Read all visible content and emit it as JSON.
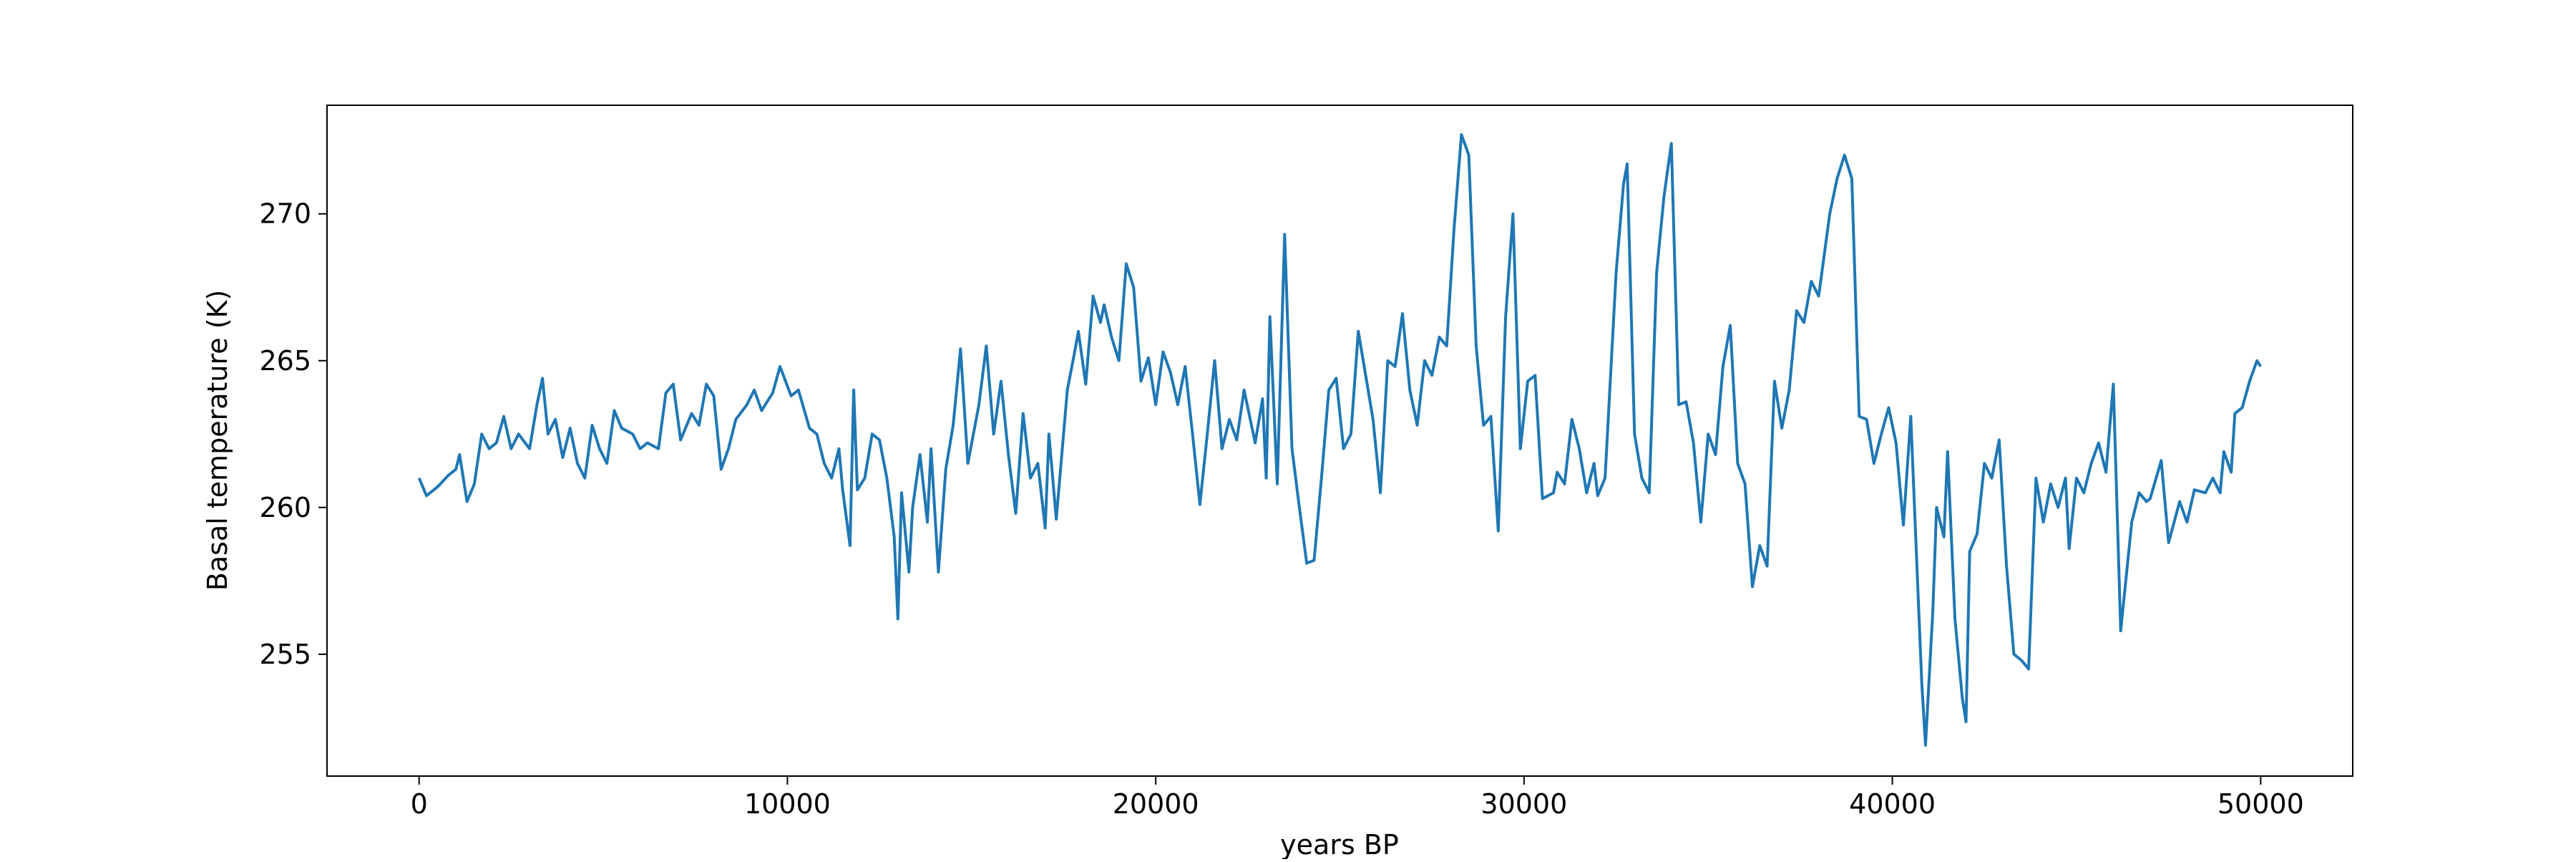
{
  "chart_data": {
    "type": "line",
    "x_label": "years BP",
    "y_label": "Basal temperature (K)",
    "color": "#1f77b4",
    "xlim": [
      -2500,
      52500
    ],
    "ylim": [
      250.85,
      273.7
    ],
    "xticks": [
      0,
      10000,
      20000,
      30000,
      40000,
      50000
    ],
    "yticks": [
      255,
      260,
      265,
      270
    ],
    "x": [
      0,
      200,
      500,
      800,
      1000,
      1100,
      1300,
      1500,
      1700,
      1900,
      2100,
      2300,
      2500,
      2700,
      3000,
      3200,
      3350,
      3500,
      3700,
      3900,
      4100,
      4300,
      4500,
      4700,
      4900,
      5100,
      5300,
      5500,
      5800,
      6000,
      6200,
      6500,
      6700,
      6900,
      7100,
      7400,
      7600,
      7800,
      8000,
      8200,
      8400,
      8600,
      8900,
      9100,
      9300,
      9600,
      9800,
      10100,
      10300,
      10600,
      10800,
      11000,
      11200,
      11400,
      11500,
      11700,
      11800,
      11900,
      12100,
      12300,
      12500,
      12700,
      12900,
      13000,
      13100,
      13300,
      13400,
      13600,
      13800,
      13900,
      14100,
      14300,
      14500,
      14700,
      14900,
      15200,
      15400,
      15600,
      15800,
      16000,
      16200,
      16400,
      16600,
      16800,
      17000,
      17100,
      17300,
      17600,
      17800,
      17900,
      18100,
      18300,
      18500,
      18600,
      18800,
      19000,
      19200,
      19400,
      19600,
      19800,
      20000,
      20200,
      20400,
      20600,
      20800,
      21000,
      21200,
      21400,
      21600,
      21800,
      22000,
      22200,
      22400,
      22700,
      22900,
      23000,
      23100,
      23300,
      23500,
      23700,
      23900,
      24100,
      24300,
      24500,
      24700,
      24900,
      25100,
      25300,
      25500,
      25700,
      25900,
      26100,
      26300,
      26500,
      26700,
      26900,
      27100,
      27300,
      27500,
      27700,
      27900,
      28100,
      28300,
      28500,
      28700,
      28900,
      29100,
      29300,
      29500,
      29700,
      29900,
      30100,
      30300,
      30500,
      30800,
      30900,
      31100,
      31300,
      31500,
      31700,
      31900,
      32000,
      32200,
      32500,
      32700,
      32800,
      33000,
      33200,
      33400,
      33600,
      33800,
      34000,
      34200,
      34400,
      34600,
      34800,
      35000,
      35200,
      35400,
      35600,
      35800,
      36000,
      36200,
      36400,
      36600,
      36800,
      37000,
      37200,
      37400,
      37600,
      37800,
      38000,
      38300,
      38500,
      38700,
      38900,
      39100,
      39300,
      39500,
      39700,
      39900,
      40100,
      40300,
      40500,
      40700,
      40800,
      40900,
      41100,
      41200,
      41400,
      41500,
      41700,
      41900,
      42000,
      42100,
      42300,
      42500,
      42700,
      42900,
      43100,
      43300,
      43500,
      43700,
      43900,
      44100,
      44300,
      44500,
      44700,
      44800,
      45000,
      45200,
      45400,
      45600,
      45800,
      46000,
      46200,
      46500,
      46700,
      46900,
      47000,
      47300,
      47500,
      47800,
      48000,
      48200,
      48500,
      48700,
      48900,
      49000,
      49200,
      49300,
      49500,
      49700,
      49900,
      50000
    ],
    "values": [
      261.0,
      260.4,
      260.7,
      261.1,
      261.3,
      261.8,
      260.2,
      260.8,
      262.5,
      262.0,
      262.2,
      263.1,
      262.0,
      262.5,
      262.0,
      263.5,
      264.4,
      262.5,
      263.0,
      261.7,
      262.7,
      261.5,
      261.0,
      262.8,
      262.0,
      261.5,
      263.3,
      262.7,
      262.5,
      262.0,
      262.2,
      262.0,
      263.9,
      264.2,
      262.3,
      263.2,
      262.8,
      264.2,
      263.8,
      261.3,
      262.0,
      263.0,
      263.5,
      264.0,
      263.3,
      263.9,
      264.8,
      263.8,
      264.0,
      262.7,
      262.5,
      261.5,
      261.0,
      262.0,
      260.6,
      258.7,
      264.0,
      260.6,
      261.0,
      262.5,
      262.3,
      261.0,
      259.0,
      256.2,
      260.5,
      257.8,
      260.0,
      261.8,
      259.5,
      262.0,
      257.8,
      261.3,
      262.8,
      265.4,
      261.5,
      263.5,
      265.5,
      262.5,
      264.3,
      261.8,
      259.8,
      263.2,
      261.0,
      261.5,
      259.3,
      262.5,
      259.6,
      264.0,
      265.3,
      266.0,
      264.2,
      267.2,
      266.3,
      266.9,
      265.8,
      265.0,
      268.3,
      267.5,
      264.3,
      265.1,
      263.5,
      265.3,
      264.6,
      263.5,
      264.8,
      262.5,
      260.1,
      262.5,
      265.0,
      262.0,
      263.0,
      262.3,
      264.0,
      262.2,
      263.7,
      261.0,
      266.5,
      260.8,
      269.3,
      262.0,
      260.0,
      258.1,
      258.2,
      261.0,
      264.0,
      264.4,
      262.0,
      262.5,
      266.0,
      264.5,
      263.0,
      260.5,
      265.0,
      264.8,
      266.6,
      264.0,
      262.8,
      265.0,
      264.5,
      265.8,
      265.5,
      269.5,
      272.7,
      272.0,
      265.5,
      262.8,
      263.1,
      259.2,
      266.5,
      270.0,
      262.0,
      264.3,
      264.5,
      260.3,
      260.5,
      261.2,
      260.8,
      263.0,
      262.0,
      260.5,
      261.5,
      260.4,
      261.0,
      268.0,
      271.0,
      271.7,
      262.5,
      261.0,
      260.5,
      268.0,
      270.6,
      272.4,
      263.5,
      263.6,
      262.2,
      259.5,
      262.5,
      261.8,
      264.8,
      266.2,
      261.5,
      260.8,
      257.3,
      258.7,
      258.0,
      264.3,
      262.7,
      264.0,
      266.7,
      266.3,
      267.7,
      267.2,
      270.0,
      271.2,
      272.0,
      271.2,
      263.1,
      263.0,
      261.5,
      262.5,
      263.4,
      262.2,
      259.4,
      263.1,
      257.0,
      254.0,
      251.9,
      256.5,
      260.0,
      259.0,
      261.9,
      256.2,
      253.5,
      252.7,
      258.5,
      259.1,
      261.5,
      261.0,
      262.3,
      258.0,
      255.0,
      254.8,
      254.5,
      261.0,
      259.5,
      260.8,
      260.0,
      261.0,
      258.6,
      261.0,
      260.5,
      261.5,
      262.2,
      261.2,
      264.2,
      255.8,
      259.5,
      260.5,
      260.2,
      260.3,
      261.6,
      258.8,
      260.2,
      259.5,
      260.6,
      260.5,
      261.0,
      260.5,
      261.9,
      261.2,
      263.2,
      263.4,
      264.3,
      265.0,
      264.8
    ]
  }
}
